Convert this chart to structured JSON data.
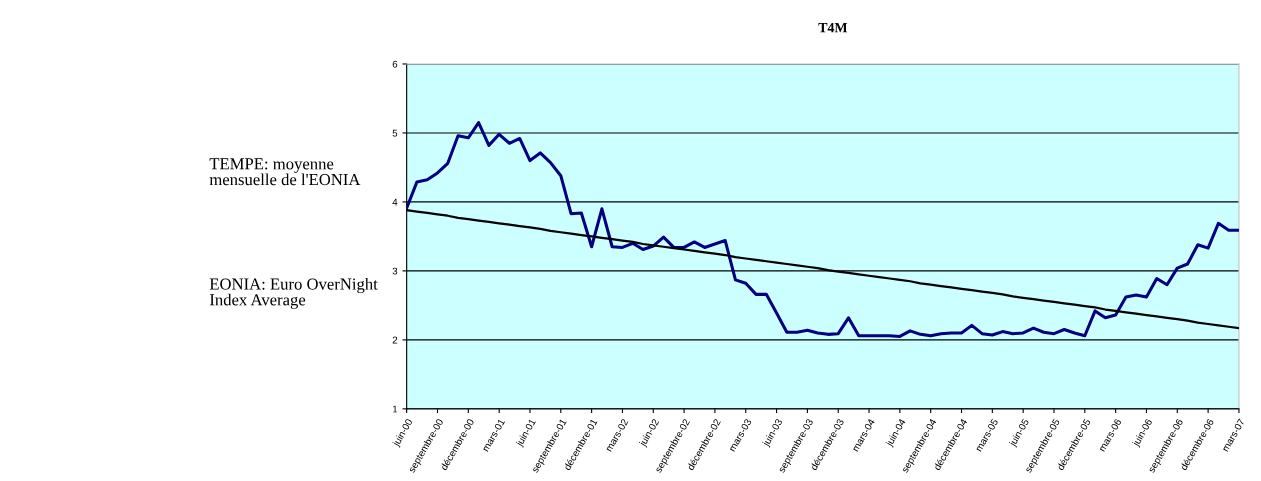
{
  "chart_data": {
    "type": "line",
    "title": "T4M",
    "annotations": [
      "TEMPE: moyenne\nmensuelle de l'EONIA",
      "EONIA: Euro OverNight\nIndex Average"
    ],
    "categories": [
      "juin-00",
      null,
      null,
      "septembre-00",
      null,
      null,
      "décembre-00",
      null,
      null,
      "mars-01",
      null,
      null,
      "juin-01",
      null,
      null,
      "septembre-01",
      null,
      null,
      "décembre-01",
      null,
      null,
      "mars-02",
      null,
      null,
      "juin-02",
      null,
      null,
      "septembre-02",
      null,
      null,
      "décembre-02",
      null,
      null,
      "mars-03",
      null,
      null,
      "juin-03",
      null,
      null,
      "septembre-03",
      null,
      null,
      "décembre-03",
      null,
      null,
      "mars-04",
      null,
      null,
      "juin-04",
      null,
      null,
      "septembre-04",
      null,
      null,
      "décembre-04",
      null,
      null,
      "mars-05",
      null,
      null,
      "juin-05",
      null,
      null,
      "septembre-05",
      null,
      null,
      "décembre-05",
      null,
      null,
      "mars-06",
      null,
      null,
      "juin-06",
      null,
      null,
      "septembre-06",
      null,
      null,
      "décembre-06",
      null,
      null,
      "mars-07"
    ],
    "series": [
      {
        "color": "#000080",
        "values": [
          3.91,
          4.29,
          4.32,
          4.42,
          4.56,
          4.96,
          4.93,
          5.15,
          4.82,
          4.98,
          4.85,
          4.92,
          4.6,
          4.71,
          4.57,
          4.38,
          3.83,
          3.84,
          3.35,
          3.9,
          3.35,
          3.34,
          3.4,
          3.31,
          3.36,
          3.49,
          3.34,
          3.34,
          3.42,
          3.34,
          3.39,
          3.44,
          2.87,
          2.82,
          2.66,
          2.66,
          2.39,
          2.11,
          2.11,
          2.14,
          2.1,
          2.08,
          2.09,
          2.32,
          2.06,
          2.06,
          2.06,
          2.06,
          2.05,
          2.13,
          2.08,
          2.06,
          2.09,
          2.1,
          2.1,
          2.21,
          2.09,
          2.07,
          2.12,
          2.09,
          2.1,
          2.17,
          2.11,
          2.09,
          2.15,
          2.1,
          2.06,
          2.42,
          2.32,
          2.36,
          2.62,
          2.65,
          2.62,
          2.89,
          2.8,
          3.04,
          3.1,
          3.38,
          3.33,
          3.69,
          3.59,
          3.59
        ]
      },
      {
        "color": "#000000",
        "values": [
          3.88,
          3.86,
          3.84,
          3.82,
          3.8,
          3.77,
          3.75,
          3.73,
          3.71,
          3.69,
          3.67,
          3.65,
          3.63,
          3.61,
          3.58,
          3.56,
          3.54,
          3.52,
          3.5,
          3.48,
          3.46,
          3.44,
          3.42,
          3.39,
          3.37,
          3.35,
          3.33,
          3.31,
          3.29,
          3.27,
          3.25,
          3.23,
          3.2,
          3.18,
          3.16,
          3.14,
          3.12,
          3.1,
          3.08,
          3.06,
          3.04,
          3.01,
          2.99,
          2.97,
          2.95,
          2.93,
          2.91,
          2.89,
          2.87,
          2.85,
          2.82,
          2.8,
          2.78,
          2.76,
          2.74,
          2.72,
          2.7,
          2.68,
          2.66,
          2.63,
          2.61,
          2.59,
          2.57,
          2.55,
          2.53,
          2.51,
          2.49,
          2.47,
          2.44,
          2.42,
          2.4,
          2.38,
          2.36,
          2.34,
          2.32,
          2.3,
          2.28,
          2.25,
          2.23,
          2.21,
          2.19,
          2.17
        ]
      }
    ],
    "ylim": [
      1,
      6
    ],
    "yticks": [
      1,
      2,
      3,
      4,
      5,
      6
    ],
    "grid": "y",
    "marker": "none",
    "line_style": "solid"
  }
}
